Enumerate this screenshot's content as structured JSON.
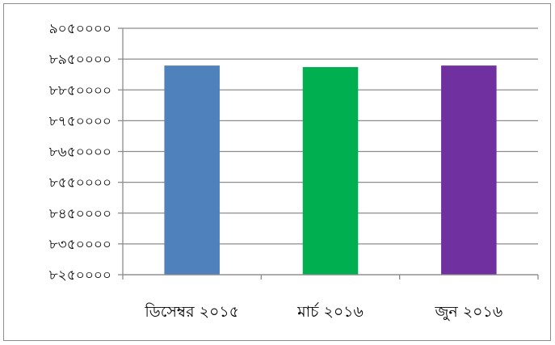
{
  "chart_data": {
    "type": "bar",
    "title": "",
    "xlabel": "",
    "ylabel": "",
    "categories": [
      "ডিসেম্বর ২০১৫",
      "মার্চ ২০১৬",
      "জুন ২০১৬"
    ],
    "values": [
      8929000,
      8924000,
      8929000
    ],
    "bar_colors": [
      "#4f81bd",
      "#00b050",
      "#7030a0"
    ],
    "ylim": [
      8250000,
      9050000
    ],
    "ytick_values": [
      8250000,
      8350000,
      8450000,
      8550000,
      8650000,
      8750000,
      8850000,
      8950000,
      9050000
    ],
    "ytick_labels": [
      "৮২৫০০০০",
      "৮৩৫০০০০",
      "৮৪৫০০০০",
      "৮৫৫০০০০",
      "৮৬৫০০০০",
      "৮৭৫০০০০",
      "৮৮৫০০০০",
      "৮৯৫০০০০",
      "৯০৫০০০০"
    ],
    "grid": true,
    "legend": "none",
    "gridline_color": "#8c8c8c"
  }
}
